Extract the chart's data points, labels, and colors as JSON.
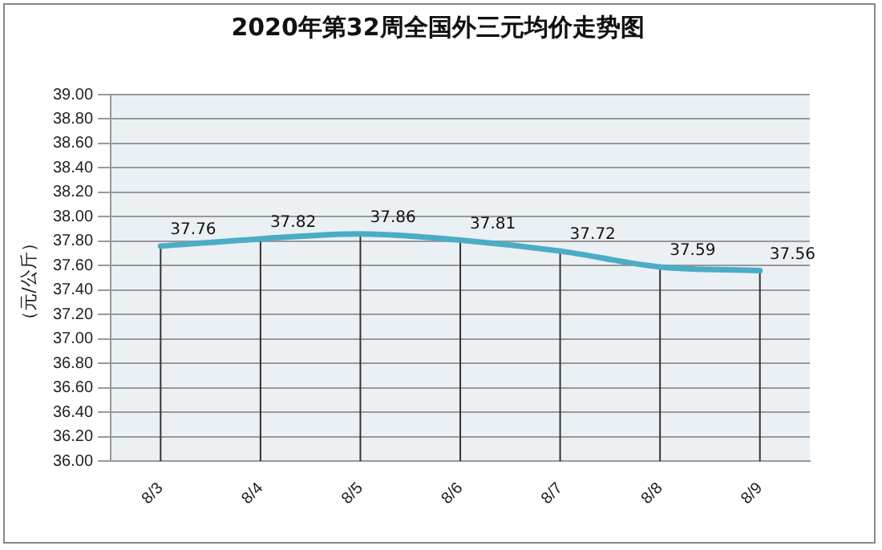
{
  "chart_data": {
    "type": "line",
    "title": "2020年第32周全国外三元均价走势图",
    "ylabel": "（元/公斤）",
    "categories": [
      "8/3",
      "8/4",
      "8/5",
      "8/6",
      "8/7",
      "8/8",
      "8/9"
    ],
    "series": [
      {
        "color": "#4bacc6",
        "values": [
          37.76,
          37.82,
          37.86,
          37.81,
          37.72,
          37.59,
          37.56
        ]
      }
    ],
    "ylim": [
      36,
      39
    ],
    "yticks": [
      {
        "value": 36,
        "label": "36.00"
      },
      {
        "value": 36.2,
        "label": "36.20"
      },
      {
        "value": 36.4,
        "label": "36.40"
      },
      {
        "value": 36.6,
        "label": "36.60"
      },
      {
        "value": 36.8,
        "label": "36.80"
      },
      {
        "value": 37,
        "label": "37.00"
      },
      {
        "value": 37.2,
        "label": "37.20"
      },
      {
        "value": 37.4,
        "label": "37.40"
      },
      {
        "value": 37.6,
        "label": "37.60"
      },
      {
        "value": 37.8,
        "label": "37.80"
      },
      {
        "value": 38,
        "label": "38.00"
      },
      {
        "value": 38.2,
        "label": "38.20"
      },
      {
        "value": 38.4,
        "label": "38.40"
      },
      {
        "value": 38.6,
        "label": "38.60"
      },
      {
        "value": 38.8,
        "label": "38.80"
      },
      {
        "value": 39,
        "label": "39.00"
      }
    ],
    "grid": "y",
    "data_labels": true,
    "marker": "none",
    "line_style": "solid",
    "legend": false
  }
}
